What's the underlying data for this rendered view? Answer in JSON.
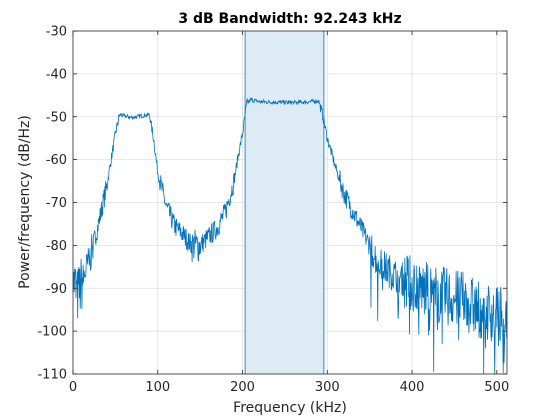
{
  "chart_data": {
    "type": "line",
    "title": "3 dB Bandwidth: 92.243 kHz",
    "xlabel": "Frequency (kHz)",
    "ylabel": "Power/frequency (dB/Hz)",
    "xlim": [
      0,
      512
    ],
    "ylim": [
      -110,
      -30
    ],
    "xticks": [
      0,
      100,
      200,
      300,
      400,
      500
    ],
    "yticks": [
      -110,
      -100,
      -90,
      -80,
      -70,
      -60,
      -50,
      -40,
      -30
    ],
    "grid": true,
    "series_color": "#0072BD",
    "band": {
      "start": 203,
      "end": 296,
      "fill": "#DDEBF5",
      "edge": "#0072BD"
    },
    "series": [
      {
        "x": [
          0,
          5,
          10,
          15,
          20,
          30,
          40,
          45,
          50,
          55,
          60,
          70,
          80,
          90,
          95,
          100,
          110,
          120,
          130,
          140,
          150,
          160,
          170,
          180,
          190,
          195,
          200,
          205,
          210,
          220,
          240,
          260,
          280,
          290,
          295,
          300,
          310,
          320,
          330,
          340,
          350,
          360,
          380,
          400,
          420,
          440,
          460,
          480,
          500,
          510
        ],
        "values": [
          -87,
          -92,
          -89,
          -86,
          -83,
          -75,
          -66,
          -60,
          -54,
          -49.5,
          -49.8,
          -50.2,
          -49.8,
          -49.5,
          -55,
          -63,
          -71,
          -75.5,
          -77.5,
          -80,
          -80,
          -78,
          -76,
          -72,
          -65,
          -59,
          -54,
          -47,
          -46,
          -46.5,
          -46.6,
          -46.7,
          -46.5,
          -46.3,
          -50,
          -55,
          -62,
          -68,
          -72,
          -76,
          -80,
          -84,
          -87,
          -89,
          -91,
          -92,
          -93,
          -95,
          -96,
          -97
        ]
      }
    ]
  }
}
